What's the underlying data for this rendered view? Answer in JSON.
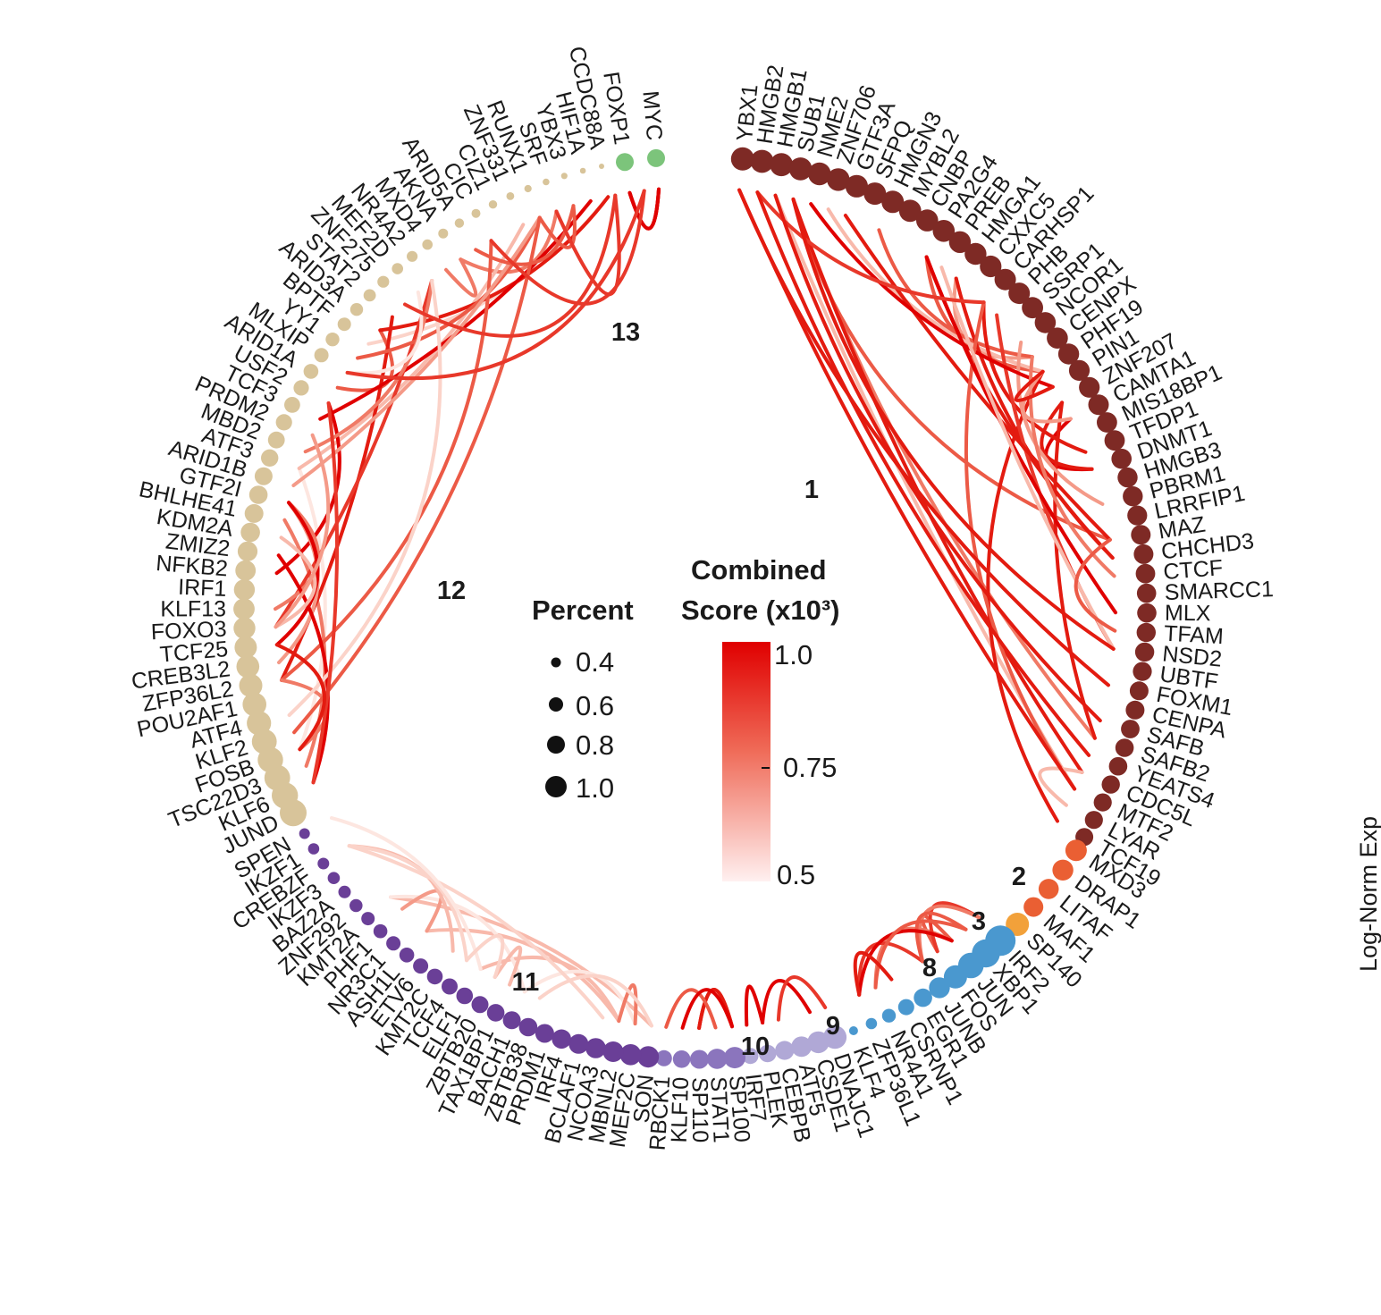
{
  "legend": {
    "percent_title": "Percent",
    "percent_values": [
      "0.4",
      "0.6",
      "0.8",
      "1.0"
    ],
    "score_title_line1": "Combined",
    "score_title_line2": "Score (x10³)",
    "score_ticks": [
      "1.0",
      "0.75",
      "0.5"
    ],
    "score_color_high": "#e00000",
    "score_color_low": "#fff0f0"
  },
  "side_label": "Log-Norm Exp",
  "cluster_colors": {
    "1": "#7e2a25",
    "2": "#ea5f33",
    "3": "#f2a13a",
    "8": "#4a98cf",
    "9": "#b0a8d6",
    "10": "#8b75bd",
    "11": "#6a3f97",
    "12": "#d8c49a",
    "13": "#7cc47b"
  },
  "clusters": [
    {
      "id": "1",
      "label": "1",
      "genes": [
        "YBX1",
        "HMGB2",
        "HMGB1",
        "SUB1",
        "NME2",
        "ZNF706",
        "GTF3A",
        "SFPQ",
        "HMGN3",
        "MYBL2",
        "CNBP",
        "PA2G4",
        "PREB",
        "HMGA1",
        "CXXC5",
        "CARHSP1",
        "PHB",
        "SSRP1",
        "NCOR1",
        "CENPX",
        "PHF19",
        "PIN1",
        "ZNF207",
        "CAMTA1",
        "MIS18BP1",
        "TFDP1",
        "DNMT1",
        "HMGB3",
        "PBRM1",
        "LRRFIP1",
        "MAZ",
        "CHCHD3",
        "CTCF",
        "SMARCC1",
        "MLX",
        "TFAM",
        "NSD2",
        "UBTF",
        "FOXM1",
        "CENPA",
        "SAFB",
        "SAFB2",
        "YEATS4",
        "CDC5L",
        "MTF2",
        "LYAR",
        "TCF19"
      ]
    },
    {
      "id": "2",
      "label": "2",
      "genes": [
        "MXD3",
        "DRAP1",
        "LITAF",
        "MAF1"
      ]
    },
    {
      "id": "3",
      "label": "3",
      "genes": [
        "SP140"
      ]
    },
    {
      "id": "8",
      "label": "8",
      "genes": [
        "IRF2",
        "XBP1",
        "JUN",
        "FOS",
        "JUNB",
        "EGR1",
        "CSRNP1",
        "NR4A1",
        "ZFP36L1",
        "KLF4"
      ]
    },
    {
      "id": "9",
      "label": "9",
      "genes": [
        "DNAJC1",
        "CSDE1",
        "ATF5",
        "CEBPB",
        "PLEK",
        "IRF7"
      ]
    },
    {
      "id": "10",
      "label": "10",
      "genes": [
        "SP100",
        "STAT1",
        "SP110",
        "KLF10",
        "RBCK1"
      ]
    },
    {
      "id": "11",
      "label": "11",
      "genes": [
        "SON",
        "MEF2C",
        "MBNL2",
        "NCOA3",
        "BCLAF1",
        "IRF4",
        "PRDM1",
        "ZBTB38",
        "BACH1",
        "TAX1BP1",
        "ZBTB20",
        "ELF1",
        "TCF4",
        "KMT2C",
        "ETV6",
        "ASH1L",
        "NR3C1",
        "PHF1",
        "KMT2A",
        "ZNF292",
        "BAZ2A",
        "IKZF3",
        "CREBZF",
        "IKZF1",
        "SPEN"
      ]
    },
    {
      "id": "12",
      "label": "12",
      "genes": [
        "JUND",
        "KLF6",
        "TSC22D3",
        "FOSB",
        "KLF2",
        "ATF4",
        "POU2AF1",
        "ZFP36L2",
        "CREB3L2",
        "TCF25",
        "FOXO3",
        "KLF13",
        "IRF1",
        "NFKB2",
        "ZMIZ2",
        "KDM2A",
        "BHLHE41",
        "GTF2I",
        "ARID1B",
        "ATF3",
        "MBD2",
        "PRDM2",
        "TCF3",
        "USF2",
        "ARID1A",
        "MLXIP",
        "YY1",
        "BPTF",
        "ARID3A",
        "STAT2",
        "ZNF275",
        "MEF2D",
        "NR4A2",
        "MXD4",
        "AKNA",
        "ARID5A",
        "CIC",
        "CIZ1",
        "ZNF331",
        "RUNX1",
        "SRF",
        "YBX3",
        "HIF1A",
        "CCDC88A"
      ]
    },
    {
      "id": "13",
      "label": "13",
      "genes": [
        "FOXP1",
        "MYC"
      ]
    }
  ]
}
